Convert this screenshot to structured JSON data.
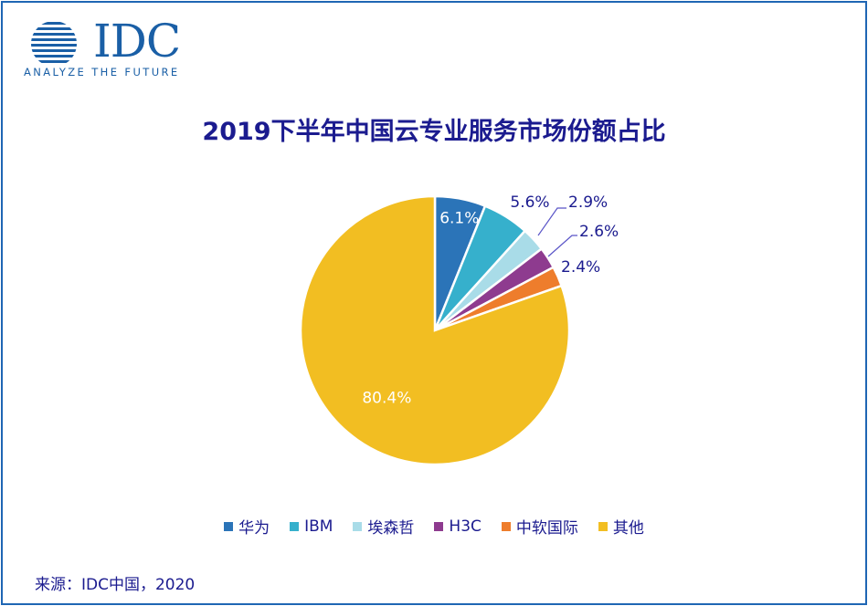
{
  "logo": {
    "name": "IDC",
    "tagline": "ANALYZE THE FUTURE",
    "color": "#1a5fa6"
  },
  "source": "来源：IDC中国，2020",
  "chart_data": {
    "type": "pie",
    "title": "2019下半年中国云专业服务市场份额占比",
    "categories": [
      "华为",
      "IBM",
      "埃森哲",
      "H3C",
      "中软国际",
      "其他"
    ],
    "values": [
      6.1,
      5.6,
      2.9,
      2.6,
      2.4,
      80.4
    ],
    "value_labels": [
      "6.1%",
      "5.6%",
      "2.9%",
      "2.6%",
      "2.4%",
      "80.4%"
    ],
    "colors": [
      "#2b74b8",
      "#36b0cc",
      "#a9dce8",
      "#8e3b8f",
      "#ee7d2c",
      "#f2be22"
    ],
    "legend_position": "bottom"
  }
}
